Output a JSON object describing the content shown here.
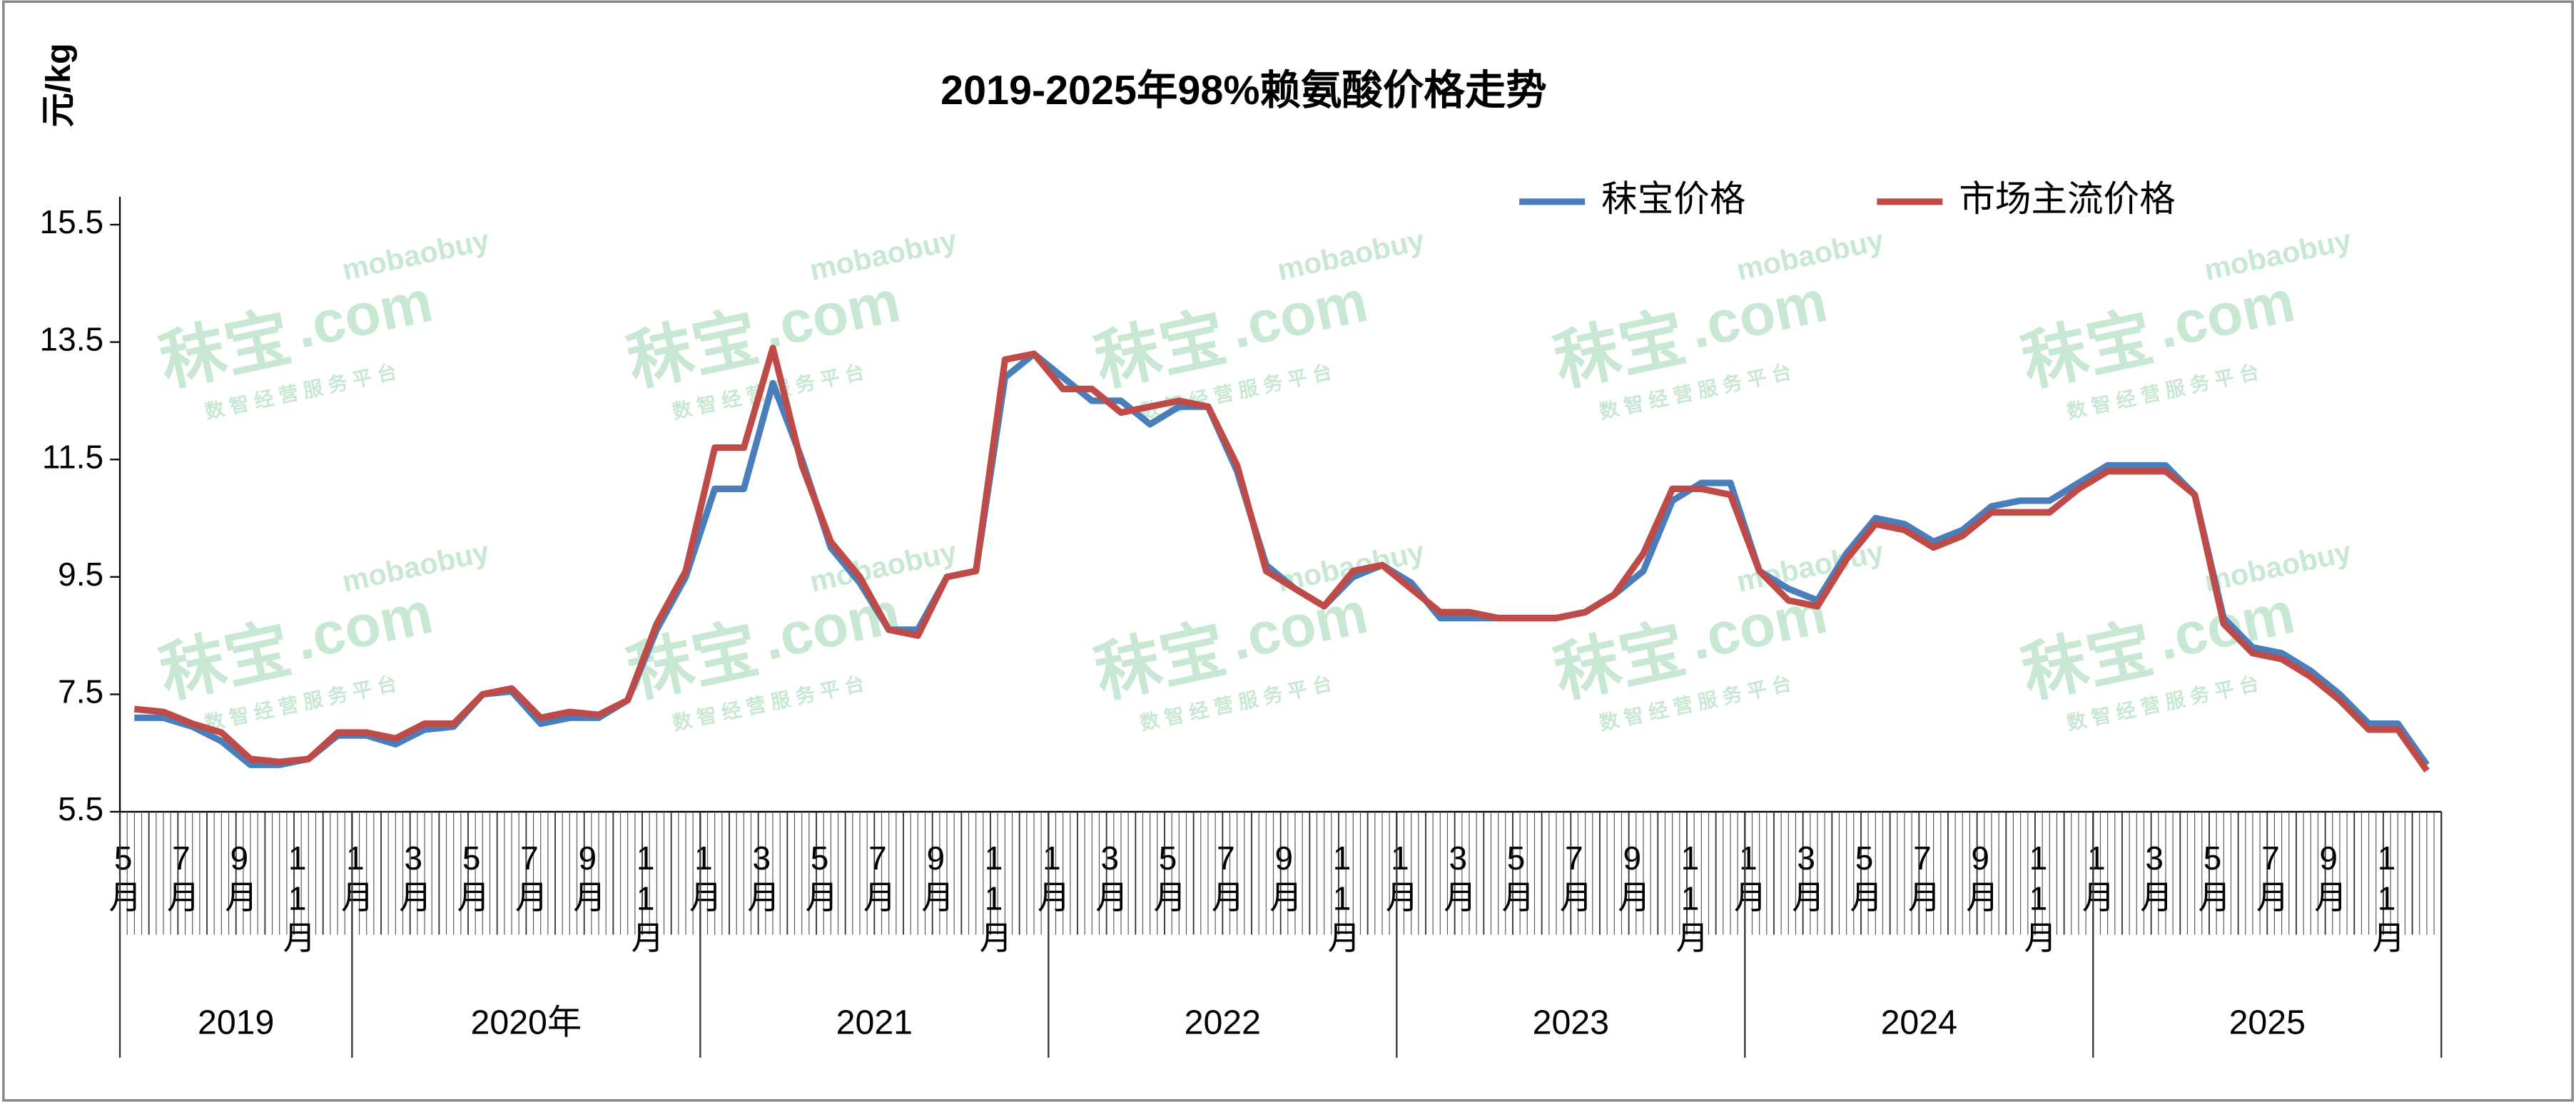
{
  "chart_data": {
    "type": "line",
    "title": "2019-2025年98%赖氨酸价格走势",
    "y_axis_label": "元/kg",
    "ylim": [
      5.5,
      15.5
    ],
    "yticks": [
      5.5,
      7.5,
      9.5,
      11.5,
      13.5,
      15.5
    ],
    "grid": false,
    "legend": "top-right",
    "categories": [
      "5月",
      null,
      "7月",
      null,
      "9月",
      null,
      "11月",
      null,
      "1月",
      null,
      "3月",
      null,
      "5月",
      null,
      "7月",
      null,
      "9月",
      null,
      "11月",
      null,
      "1月",
      null,
      "3月",
      null,
      "5月",
      null,
      "7月",
      null,
      "9月",
      null,
      "11月",
      null,
      "1月",
      null,
      "3月",
      null,
      "5月",
      null,
      "7月",
      null,
      "9月",
      null,
      "11月",
      null,
      "1月",
      null,
      "3月",
      null,
      "5月",
      null,
      "7月",
      null,
      "9月",
      null,
      "11月",
      null,
      "1月",
      null,
      "3月",
      null,
      "5月",
      null,
      "7月",
      null,
      "9月",
      null,
      "11月",
      null,
      "1月",
      null,
      "3月",
      null,
      "5月",
      null,
      "7月",
      null,
      "9月",
      null,
      "11月",
      null
    ],
    "year_groups": [
      {
        "label": "2019",
        "months": 8
      },
      {
        "label": "2020年",
        "months": 12
      },
      {
        "label": "2021",
        "months": 12
      },
      {
        "label": "2022",
        "months": 12
      },
      {
        "label": "2023",
        "months": 12
      },
      {
        "label": "2024",
        "months": 12
      },
      {
        "label": "2025",
        "months": 12
      }
    ],
    "series": [
      {
        "name": "秣宝价格",
        "color": "#4a7ebb",
        "values": [
          7.1,
          7.1,
          6.95,
          6.7,
          6.3,
          6.3,
          6.4,
          6.8,
          6.8,
          6.65,
          6.9,
          6.95,
          7.5,
          7.55,
          7.0,
          7.1,
          7.1,
          7.4,
          8.6,
          9.5,
          11.0,
          11.0,
          12.8,
          11.5,
          10.0,
          9.4,
          8.6,
          8.6,
          9.5,
          9.6,
          12.9,
          13.3,
          12.9,
          12.5,
          12.5,
          12.1,
          12.4,
          12.4,
          11.3,
          9.7,
          9.3,
          9.0,
          9.5,
          9.7,
          9.4,
          8.8,
          8.8,
          8.8,
          8.8,
          8.8,
          8.9,
          9.2,
          9.6,
          10.8,
          11.1,
          11.1,
          9.6,
          9.3,
          9.1,
          9.9,
          10.5,
          10.4,
          10.1,
          10.3,
          10.7,
          10.8,
          10.8,
          11.1,
          11.4,
          11.4,
          11.4,
          10.9,
          8.8,
          8.3,
          8.2,
          7.9,
          7.5,
          7.0,
          7.0,
          6.3
        ]
      },
      {
        "name": "市场主流价格",
        "color": "#be4b48",
        "values": [
          7.25,
          7.2,
          7.0,
          6.85,
          6.4,
          6.35,
          6.4,
          6.85,
          6.85,
          6.75,
          7.0,
          7.0,
          7.5,
          7.6,
          7.1,
          7.2,
          7.15,
          7.4,
          8.7,
          9.6,
          11.7,
          11.7,
          13.4,
          11.4,
          10.1,
          9.5,
          8.6,
          8.5,
          9.5,
          9.6,
          13.2,
          13.3,
          12.7,
          12.7,
          12.3,
          12.4,
          12.5,
          12.4,
          11.4,
          9.6,
          9.3,
          9.0,
          9.6,
          9.7,
          9.3,
          8.9,
          8.9,
          8.8,
          8.8,
          8.8,
          8.9,
          9.2,
          9.9,
          11.0,
          11.0,
          10.9,
          9.6,
          9.1,
          9.0,
          9.8,
          10.4,
          10.3,
          10.0,
          10.2,
          10.6,
          10.6,
          10.6,
          11.0,
          11.3,
          11.3,
          11.3,
          10.9,
          8.7,
          8.2,
          8.1,
          7.8,
          7.4,
          6.9,
          6.9,
          6.2
        ]
      }
    ],
    "watermark": {
      "brand": "秣宝",
      "domain": ".com",
      "latin": "mobaobuy",
      "slogan": "数 智 经 营 服 务 平 台"
    }
  }
}
